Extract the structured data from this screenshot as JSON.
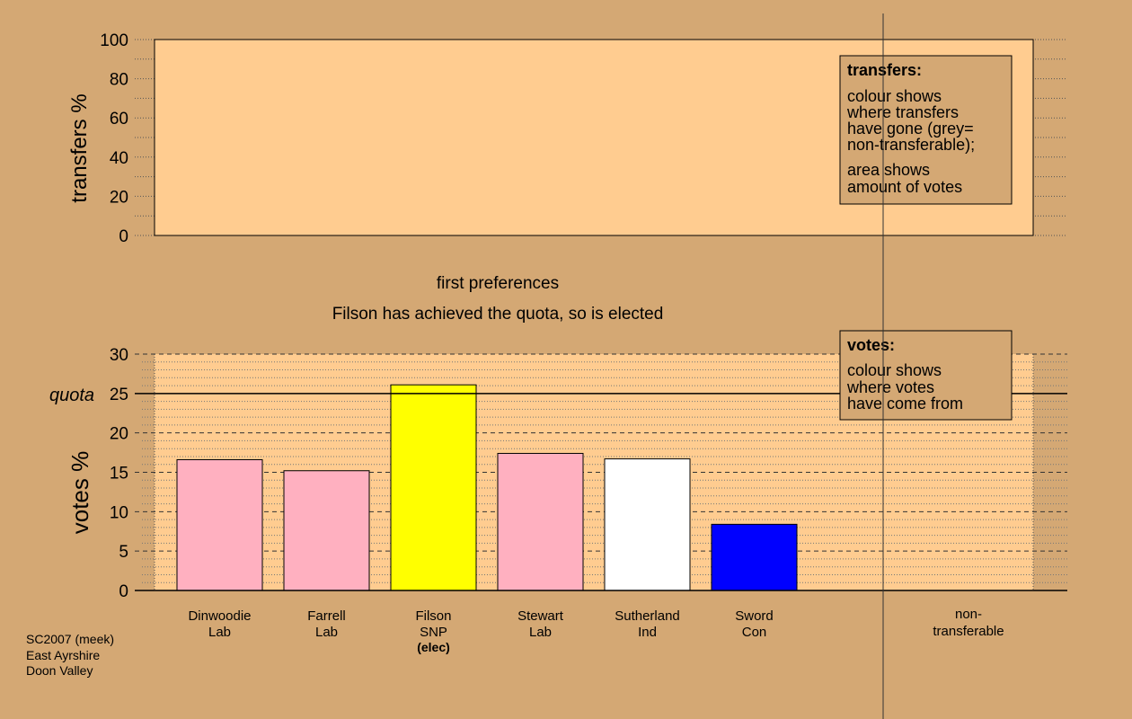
{
  "colors": {
    "background": "#d4a874",
    "panel": "#ffcc90",
    "legend_box": "#d4a874",
    "Lab": "#ffb0c0",
    "SNP": "#ffff00",
    "Ind": "#ffffff",
    "Con": "#0000ff"
  },
  "chart_data": [
    {
      "type": "bar",
      "ylabel": "transfers %",
      "ylim": [
        0,
        100
      ],
      "yticks": [
        "0",
        "20",
        "40",
        "60",
        "80",
        "100"
      ],
      "grid": true,
      "values": []
    },
    {
      "type": "bar",
      "title": "first preferences",
      "subtitle": "Filson has achieved the quota, so is elected",
      "ylabel": "votes %",
      "ylim": [
        0,
        30
      ],
      "yticks": [
        "0",
        "5",
        "10",
        "15",
        "20",
        "25",
        "30"
      ],
      "quota_label": "quota",
      "quota": 25,
      "grid": true,
      "categories": [
        {
          "name": "Dinwoodie",
          "party": "Lab",
          "extra": ""
        },
        {
          "name": "Farrell",
          "party": "Lab",
          "extra": ""
        },
        {
          "name": "Filson",
          "party": "SNP",
          "extra": "(elec)"
        },
        {
          "name": "Stewart",
          "party": "Lab",
          "extra": ""
        },
        {
          "name": "Sutherland",
          "party": "Ind",
          "extra": ""
        },
        {
          "name": "Sword",
          "party": "Con",
          "extra": ""
        }
      ],
      "values": [
        16.6,
        15.2,
        26.1,
        17.4,
        16.7,
        8.4
      ],
      "nontransferable_label_1": "non-",
      "nontransferable_label_2": "transferable"
    }
  ],
  "legends": {
    "transfers": {
      "title": "transfers:",
      "lines1": [
        "colour shows",
        "where transfers",
        "have gone (grey=",
        "non-transferable);"
      ],
      "lines2": [
        "area shows",
        "amount of votes"
      ]
    },
    "votes": {
      "title": "votes:",
      "lines1": [
        "colour shows",
        "where votes",
        "have come from"
      ]
    }
  },
  "footer": [
    "SC2007 (meek)",
    "East Ayrshire",
    "Doon Valley"
  ]
}
